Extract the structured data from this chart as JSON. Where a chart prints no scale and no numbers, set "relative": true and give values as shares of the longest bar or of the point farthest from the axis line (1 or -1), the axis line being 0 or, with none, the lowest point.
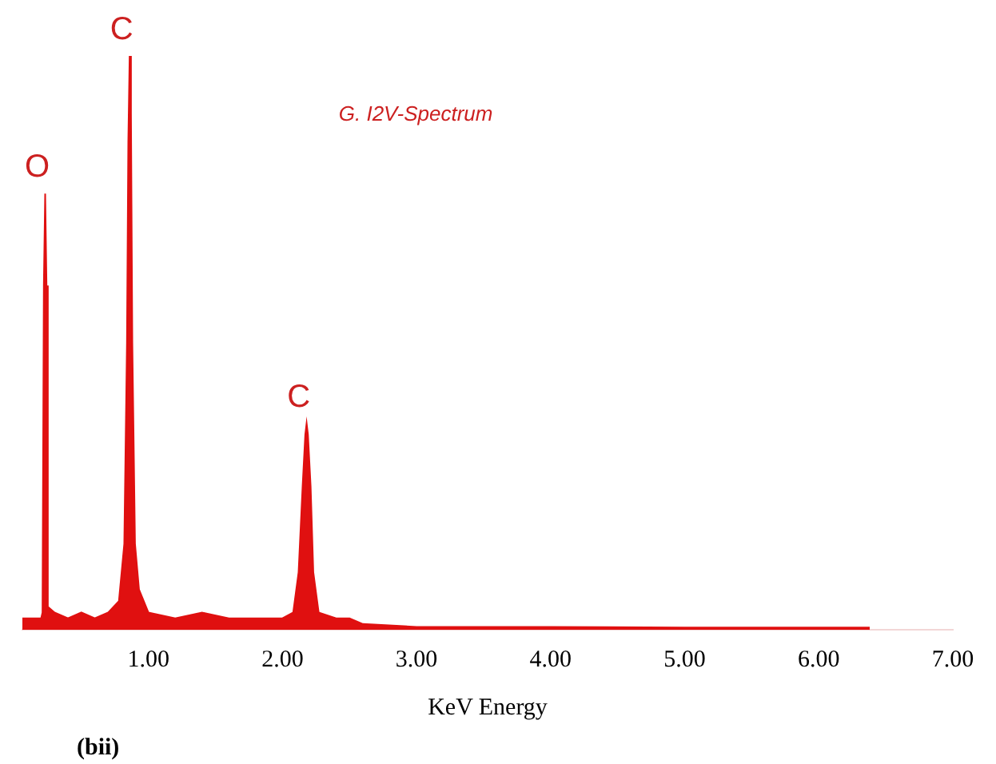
{
  "chart_data": {
    "type": "area",
    "relative": true,
    "xlabel": "KeV Energy",
    "color": "#e01010",
    "x": [
      0.06,
      0.15,
      0.2,
      0.21,
      0.22,
      0.23,
      0.24,
      0.25,
      0.3,
      0.4,
      0.5,
      0.6,
      0.7,
      0.78,
      0.82,
      0.84,
      0.85,
      0.86,
      0.87,
      0.88,
      0.9,
      0.93,
      1.0,
      1.2,
      1.4,
      1.6,
      1.8,
      2.0,
      2.08,
      2.12,
      2.15,
      2.17,
      2.18,
      2.19,
      2.21,
      2.23,
      2.27,
      2.4,
      2.5,
      2.6,
      3.0,
      4.0,
      5.0,
      6.0,
      6.38
    ],
    "values": [
      0.02,
      0.02,
      0.02,
      0.03,
      0.6,
      0.76,
      0.6,
      0.04,
      0.03,
      0.02,
      0.03,
      0.02,
      0.03,
      0.05,
      0.15,
      0.5,
      0.85,
      1.0,
      0.9,
      0.5,
      0.15,
      0.07,
      0.03,
      0.02,
      0.03,
      0.02,
      0.02,
      0.02,
      0.03,
      0.1,
      0.25,
      0.34,
      0.36,
      0.34,
      0.25,
      0.1,
      0.03,
      0.02,
      0.02,
      0.01,
      0.005,
      0.005,
      0.004,
      0.004,
      0.004
    ],
    "xlim": [
      0.06,
      7
    ],
    "xticks": [
      {
        "value": 1,
        "label": "1.00"
      },
      {
        "value": 2,
        "label": "2.00"
      },
      {
        "value": 3,
        "label": "3.00"
      },
      {
        "value": 4,
        "label": "4.00"
      },
      {
        "value": 5,
        "label": "5.00"
      },
      {
        "value": 6,
        "label": "6.00"
      },
      {
        "value": 7,
        "label": "7.00"
      }
    ],
    "grid": false,
    "legend": false,
    "annotations": [
      {
        "text": "O",
        "x": 0.23,
        "y": 0.76
      },
      {
        "text": "C",
        "x": 0.86,
        "y": 1.0
      },
      {
        "text": "C",
        "x": 2.18,
        "y": 0.36
      },
      "G. I2V-Spectrum",
      "(bii)"
    ]
  }
}
